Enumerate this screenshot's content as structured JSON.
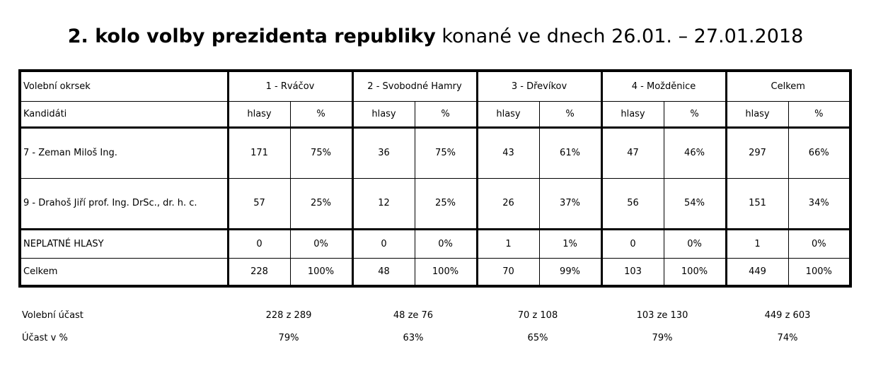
{
  "title": {
    "bold": "2. kolo volby prezidenta republiky",
    "rest": " konané ve dnech 26.01. – 27.01.2018"
  },
  "table": {
    "header_label": "Volební okrsek",
    "districts": [
      "1 - Rváčov",
      "2 - Svobodné Hamry",
      "3 - Dřevíkov",
      "4 - Možděnice",
      "Celkem"
    ],
    "subheader_label": "Kandidáti",
    "col_votes": "hlasy",
    "col_pct": "%",
    "rows": [
      {
        "label": "7 - Zeman Miloš Ing.",
        "cells": [
          "171",
          "75%",
          "36",
          "75%",
          "43",
          "61%",
          "47",
          "46%",
          "297",
          "66%"
        ]
      },
      {
        "label": "9 - Drahoš Jiří prof. Ing. DrSc., dr. h. c.",
        "cells": [
          "57",
          "25%",
          "12",
          "25%",
          "26",
          "37%",
          "56",
          "54%",
          "151",
          "34%"
        ]
      },
      {
        "label": "NEPLATNÉ HLASY",
        "cells": [
          "0",
          "0%",
          "0",
          "0%",
          "1",
          "1%",
          "0",
          "0%",
          "1",
          "0%"
        ]
      },
      {
        "label": "Celkem",
        "cells": [
          "228",
          "100%",
          "48",
          "100%",
          "70",
          "99%",
          "103",
          "100%",
          "449",
          "100%"
        ]
      }
    ]
  },
  "turnout": {
    "label": "Volební účast",
    "values": [
      "228 z 289",
      "48 ze 76",
      "70 z 108",
      "103 ze 130",
      "449 z 603"
    ]
  },
  "turnout_pct": {
    "label": "Účast v %",
    "values": [
      "79%",
      "63%",
      "65%",
      "79%",
      "74%"
    ]
  }
}
